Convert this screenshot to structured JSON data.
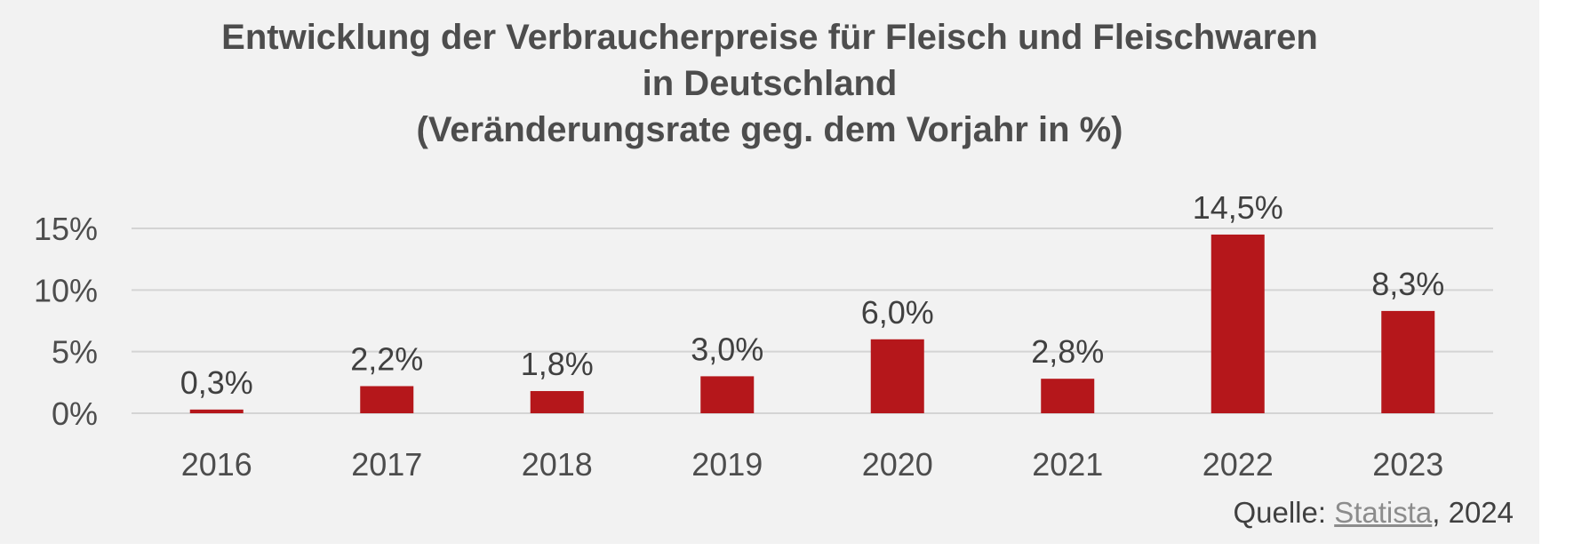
{
  "chart_data": {
    "type": "bar",
    "title_lines": [
      "Entwicklung der Verbraucherpreise für Fleisch und Fleischwaren",
      "in Deutschland",
      "(Veränderungsrate geg. dem Vorjahr in %)"
    ],
    "categories": [
      "2016",
      "2017",
      "2018",
      "2019",
      "2020",
      "2021",
      "2022",
      "2023"
    ],
    "values": [
      0.3,
      2.2,
      1.8,
      3.0,
      6.0,
      2.8,
      14.5,
      8.3
    ],
    "data_labels": [
      "0,3%",
      "2,2%",
      "1,8%",
      "3,0%",
      "6,0%",
      "2,8%",
      "14,5%",
      "8,3%"
    ],
    "yticks": [
      0,
      5,
      10,
      15
    ],
    "ytick_labels": [
      "0%",
      "5%",
      "10%",
      "15%"
    ],
    "ylim": [
      0,
      15
    ],
    "xlabel": "",
    "ylabel": "",
    "grid": true,
    "legend": "none",
    "bar_color": "#b5171b"
  },
  "source": {
    "prefix": "Quelle: ",
    "link": "Statista",
    "suffix": ", 2024"
  }
}
